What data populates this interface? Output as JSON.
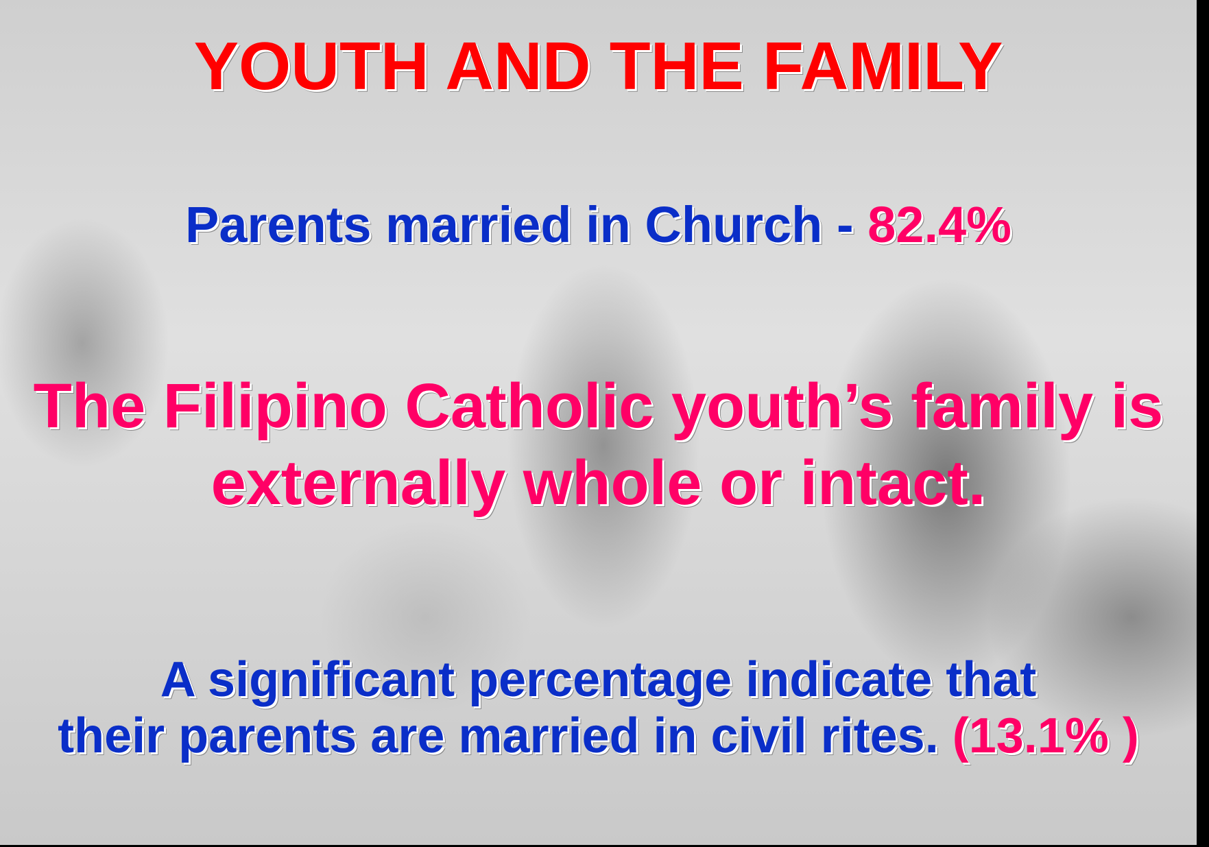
{
  "slide": {
    "title": "YOUTH AND THE FAMILY",
    "church": {
      "text": "Parents married in Church -",
      "figure": "82.4%"
    },
    "statement": [
      "The Filipino Catholic youth’s family is",
      "externally whole or intact."
    ],
    "civil": {
      "lines": [
        "A significant percentage indicate that",
        "their parents are married in civil rites."
      ],
      "figure": "(13.1% )"
    }
  }
}
